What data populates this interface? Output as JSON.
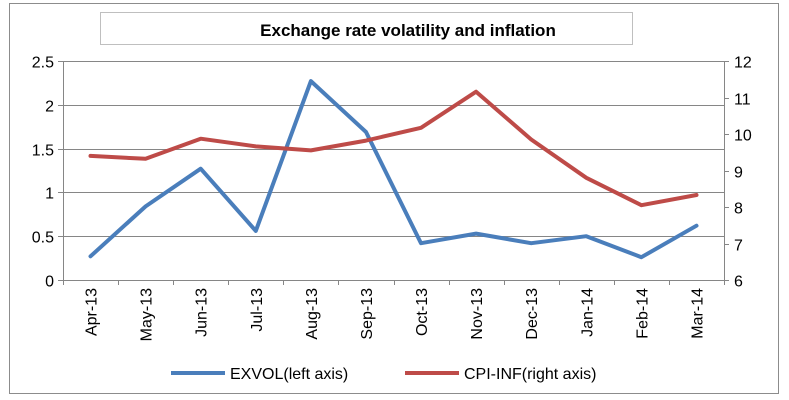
{
  "chart_data": {
    "type": "line",
    "title": "Exchange rate volatility and inflation",
    "categories": [
      "Apr-13",
      "May-13",
      "Jun-13",
      "Jul-13",
      "Aug-13",
      "Sep-13",
      "Oct-13",
      "Nov-13",
      "Dec-13",
      "Jan-14",
      "Feb-14",
      "Mar-14"
    ],
    "y_left": {
      "min": 0,
      "max": 2.5,
      "step": 0.5,
      "ticks": [
        "0",
        "0.5",
        "1",
        "1.5",
        "2",
        "2.5"
      ]
    },
    "y_right": {
      "min": 6,
      "max": 12,
      "step": 1,
      "ticks": [
        "6",
        "7",
        "8",
        "9",
        "10",
        "11",
        "12"
      ]
    },
    "grid": true,
    "legend_position": "bottom",
    "series": [
      {
        "name": "EXVOL(left axis)",
        "axis": "left",
        "color": "#4A7EBB",
        "values": [
          0.27,
          0.84,
          1.27,
          0.56,
          2.27,
          1.69,
          0.42,
          0.53,
          0.42,
          0.5,
          0.26,
          0.62
        ]
      },
      {
        "name": "CPI-INF(right axis)",
        "axis": "right",
        "color": "#BE4B48",
        "values": [
          9.4,
          9.32,
          9.87,
          9.66,
          9.55,
          9.82,
          10.17,
          11.16,
          9.85,
          8.8,
          8.05,
          8.33
        ]
      }
    ]
  }
}
